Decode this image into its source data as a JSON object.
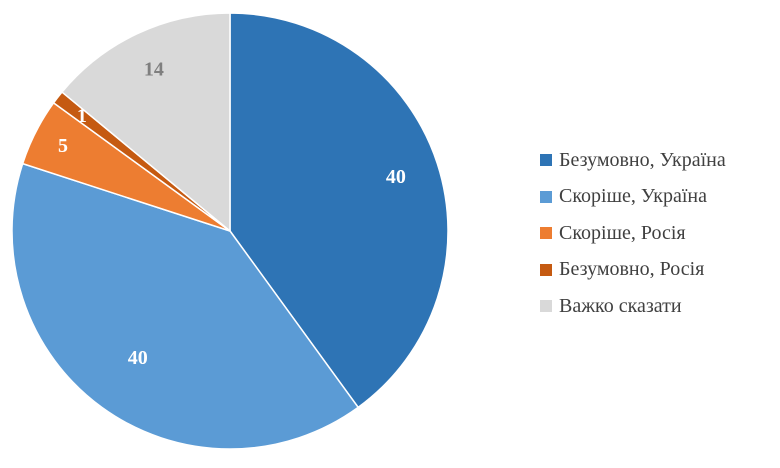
{
  "chart_data": {
    "type": "pie",
    "title": "",
    "categories": [
      "Безумовно, Україна",
      "Скоріше, Україна",
      "Скоріше, Росія",
      "Безумовно, Росія",
      "Важко сказати"
    ],
    "values": [
      40,
      40,
      5,
      1,
      14
    ],
    "data_labels": [
      "40",
      "40",
      "5",
      "1",
      "14"
    ],
    "colors": [
      "#2e74b5",
      "#5b9bd5",
      "#ed7d31",
      "#c55a11",
      "#d9d9d9"
    ],
    "label_colors": [
      "#ffffff",
      "#ffffff",
      "#ffffff",
      "#ffffff",
      "#7f7f7f"
    ],
    "start_angle": "12 o'clock",
    "direction": "clockwise",
    "legend_position": "right"
  }
}
